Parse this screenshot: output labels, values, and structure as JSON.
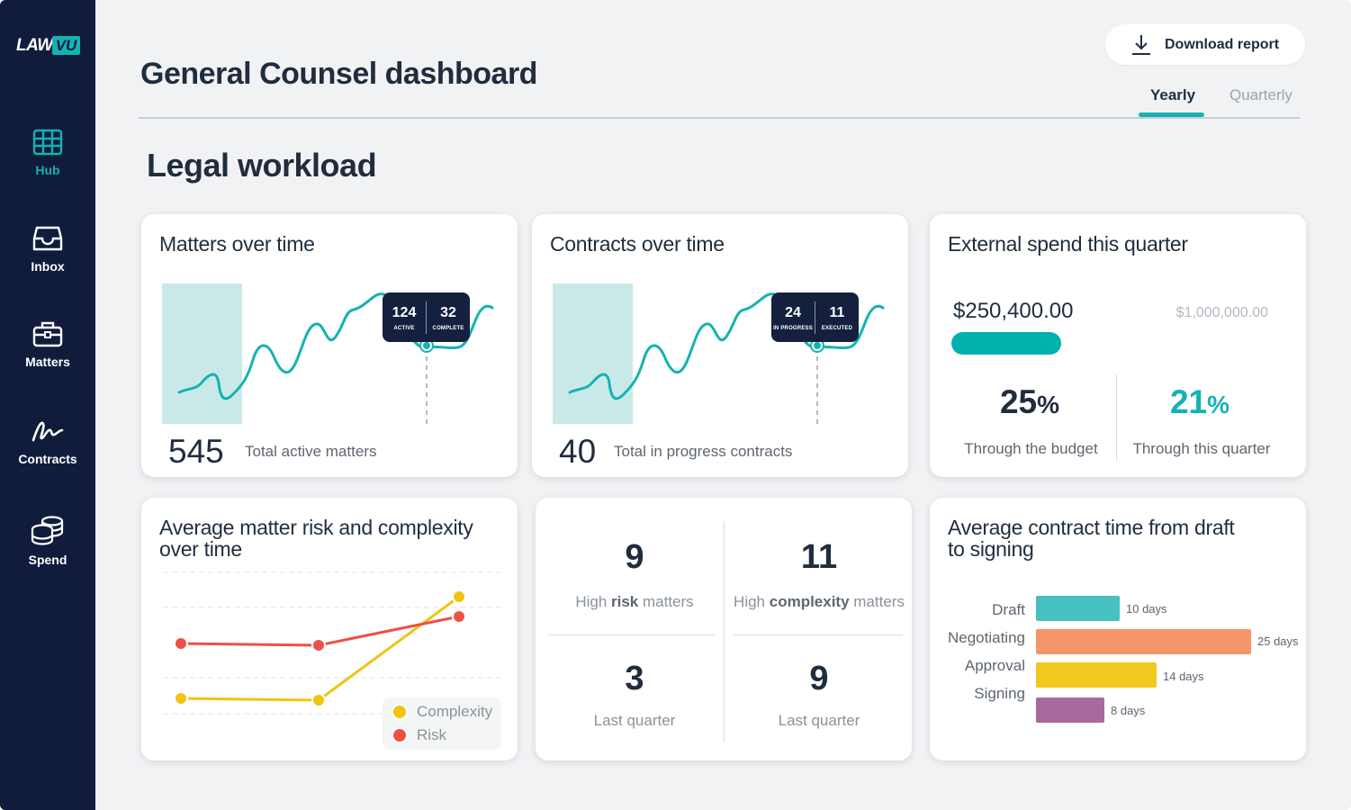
{
  "brand": {
    "logo_left": "LAW",
    "logo_right": "VU"
  },
  "sidebar": {
    "items": [
      {
        "label": "Hub",
        "icon": "grid-icon",
        "active": true
      },
      {
        "label": "Inbox",
        "icon": "inbox-icon",
        "active": false
      },
      {
        "label": "Matters",
        "icon": "briefcase-icon",
        "active": false
      },
      {
        "label": "Contracts",
        "icon": "signature-icon",
        "active": false
      },
      {
        "label": "Spend",
        "icon": "coins-icon",
        "active": false
      }
    ]
  },
  "header": {
    "title": "General Counsel dashboard",
    "download_label": "Download report",
    "tabs": [
      {
        "label": "Yearly",
        "active": true
      },
      {
        "label": "Quarterly",
        "active": false
      }
    ]
  },
  "section": {
    "title": "Legal workload"
  },
  "matters_card": {
    "title": "Matters over time",
    "total": "545",
    "total_label": "Total active matters",
    "tooltip": {
      "left_value": "124",
      "left_label": "ACTIVE",
      "right_value": "32",
      "right_label": "COMPLETE"
    }
  },
  "contracts_card": {
    "title": "Contracts over time",
    "total": "40",
    "total_label": "Total in progress contracts",
    "tooltip": {
      "left_value": "24",
      "left_label": "IN PROGRESS",
      "right_value": "11",
      "right_label": "EXECUTED"
    }
  },
  "spend_card": {
    "title": "External spend this quarter",
    "spent": "$250,400.00",
    "budget": "$1,000,000.00",
    "progress_fraction": 0.25,
    "budget_pct": "25",
    "budget_label": "Through the budget",
    "quarter_pct": "21",
    "quarter_label": "Through this quarter",
    "pct_sign": "%"
  },
  "risk_card": {
    "title_line1": "Average matter risk and complexity",
    "title_line2": "over time",
    "legend": {
      "complexity": "Complexity",
      "risk": "Risk"
    },
    "colors": {
      "complexity": "#f1c40f",
      "risk": "#ef4f46"
    }
  },
  "high_card": {
    "high_risk_value": "9",
    "high_risk_pre": "High ",
    "high_risk_bold": "risk",
    "high_risk_post": " matters",
    "high_complexity_value": "11",
    "high_complexity_pre": "High ",
    "high_complexity_bold": "complexity",
    "high_complexity_post": " matters",
    "lq_risk_value": "3",
    "lq_risk_label": "Last quarter",
    "lq_complexity_value": "9",
    "lq_complexity_label": "Last quarter"
  },
  "contract_time_card": {
    "title_line1": "Average contract time from draft",
    "title_line2": "to signing",
    "bars": [
      {
        "label": "Draft",
        "value": 10,
        "value_label": "10 days",
        "color": "#46c0c0"
      },
      {
        "label": "Negotiating",
        "value": 25,
        "value_label": "25 days",
        "color": "#f5956a"
      },
      {
        "label": "Approval",
        "value": 14,
        "value_label": "14 days",
        "color": "#f0c81e"
      },
      {
        "label": "Signing",
        "value": 8,
        "value_label": "8 days",
        "color": "#a76a9d"
      }
    ]
  },
  "colors": {
    "accent": "#14b3b1",
    "sidebar": "#111c3d",
    "text": "#1f2d3e"
  }
}
